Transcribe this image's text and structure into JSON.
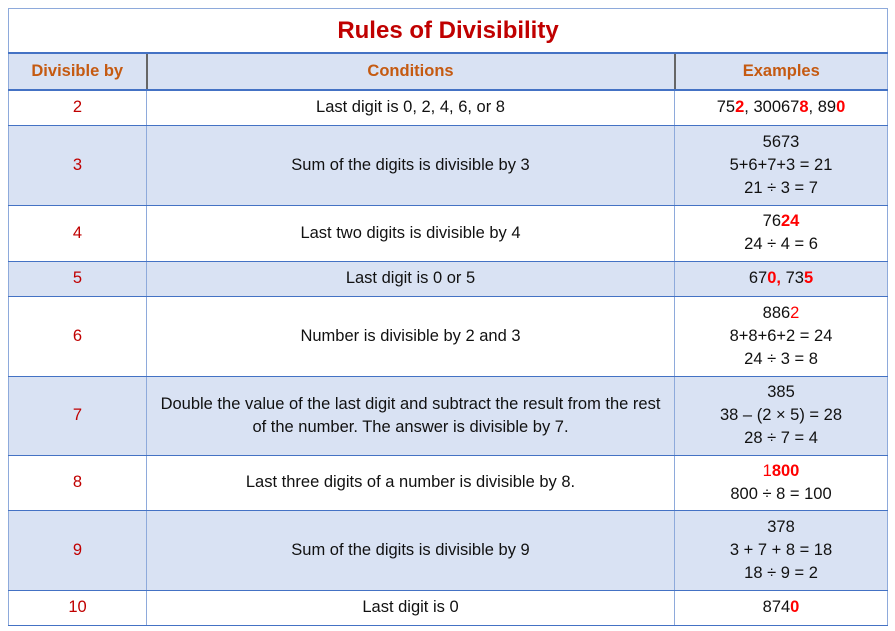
{
  "title": "Rules of Divisibility",
  "headers": {
    "divisor": "Divisible by",
    "conditions": "Conditions",
    "examples": "Examples"
  },
  "colors": {
    "title": "#c00000",
    "header_text": "#c55a11",
    "divisor": "#c00000",
    "highlight": "#ff0000",
    "alt_row_bg": "#d9e2f3",
    "border": "#8eaadb"
  },
  "rows": [
    {
      "divisor": "2",
      "condition": "Last digit is 0, 2, 4, 6, or 8",
      "heights": 35,
      "example": [
        [
          {
            "t": "75"
          },
          {
            "t": "2",
            "s": "redb"
          },
          {
            "t": ", 30067"
          },
          {
            "t": "8",
            "s": "redb"
          },
          {
            "t": ", 89"
          },
          {
            "t": "0",
            "s": "redb"
          }
        ]
      ]
    },
    {
      "divisor": "3",
      "condition": "Sum of the digits is divisible by 3",
      "example": [
        [
          {
            "t": "5673"
          }
        ],
        [
          {
            "t": "5+6+7+3 = 21"
          }
        ],
        [
          {
            "t": "21 ÷ 3 = 7"
          }
        ]
      ]
    },
    {
      "divisor": "4",
      "condition": "Last two digits is divisible by 4",
      "example": [
        [
          {
            "t": "76"
          },
          {
            "t": "24",
            "s": "redb"
          }
        ],
        [
          {
            "t": "24 ÷ 4 = 6"
          }
        ]
      ]
    },
    {
      "divisor": "5",
      "condition": "Last digit is 0 or 5",
      "example": [
        [
          {
            "t": "67"
          },
          {
            "t": "0,",
            "s": "redb"
          },
          {
            "t": " 73"
          },
          {
            "t": "5",
            "s": "redb"
          }
        ]
      ]
    },
    {
      "divisor": "6",
      "condition": "Number is divisible by 2 and 3",
      "example": [
        [
          {
            "t": "886"
          },
          {
            "t": "2",
            "s": "red"
          }
        ],
        [
          {
            "t": "8+8+6+2 = 24"
          }
        ],
        [
          {
            "t": "24 ÷ 3 = 8"
          }
        ]
      ]
    },
    {
      "divisor": "7",
      "condition": "Double the value of the last digit and subtract the result from the rest of the number. The answer is divisible by 7.",
      "example": [
        [
          {
            "t": "385"
          }
        ],
        [
          {
            "t": "38 – (2 × 5) = 28"
          }
        ],
        [
          {
            "t": "28 ÷ 7 = 4"
          }
        ]
      ]
    },
    {
      "divisor": "8",
      "condition": "Last three digits of a number is divisible by 8.",
      "example": [
        [
          {
            "t": "1",
            "s": "red"
          },
          {
            "t": "800",
            "s": "redb"
          }
        ],
        [
          {
            "t": "800 ÷ 8 = 100"
          }
        ]
      ]
    },
    {
      "divisor": "9",
      "condition": "Sum of the digits is divisible by 9",
      "example": [
        [
          {
            "t": "378"
          }
        ],
        [
          {
            "t": "3 + 7 + 8 = 18"
          }
        ],
        [
          {
            "t": "18 ÷ 9 = 2"
          }
        ]
      ]
    },
    {
      "divisor": "10",
      "condition": "Last digit is 0",
      "example": [
        [
          {
            "t": "874"
          },
          {
            "t": "0",
            "s": "redb"
          }
        ]
      ]
    }
  ]
}
